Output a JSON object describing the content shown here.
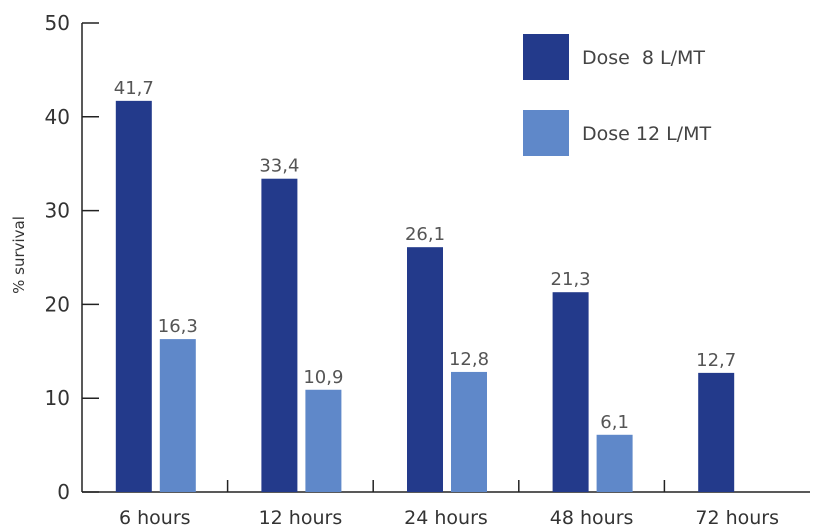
{
  "chart_data": {
    "type": "bar",
    "title": "",
    "xlabel": "",
    "ylabel": "% survival",
    "ylim": [
      0,
      50
    ],
    "yticks": [
      "0",
      "10",
      "20",
      "30",
      "40",
      "50"
    ],
    "grid": false,
    "legend_position": "top-right",
    "categories": [
      "6 hours",
      "12 hours",
      "24 hours",
      "48 hours",
      "72 hours"
    ],
    "series": [
      {
        "name": "Dose  8 L/MT",
        "color": "#233a8b",
        "values": [
          41.7,
          33.4,
          26.1,
          21.3,
          12.7
        ],
        "labels": [
          "41,7",
          "33,4",
          "26,1",
          "21,3",
          "12,7"
        ]
      },
      {
        "name": "Dose 12 L/MT",
        "color": "#5f88c9",
        "values": [
          16.3,
          10.9,
          12.8,
          6.1,
          null
        ],
        "labels": [
          "16,3",
          "10,9",
          "12,8",
          "6,1",
          null
        ]
      }
    ]
  }
}
